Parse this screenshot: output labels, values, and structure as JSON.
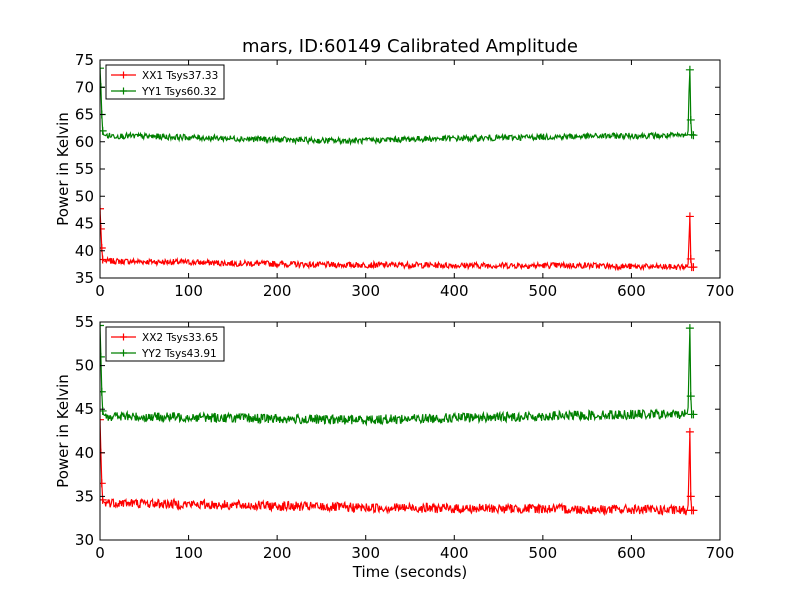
{
  "title": "mars, ID:60149 Calibrated Amplitude",
  "chart_data": [
    {
      "type": "line",
      "xlabel": "",
      "ylabel": "Power in Kelvin",
      "xlim": [
        0,
        700
      ],
      "ylim": [
        35,
        75
      ],
      "xticks": [
        "0",
        "100",
        "200",
        "300",
        "400",
        "500",
        "600",
        "700"
      ],
      "yticks": [
        "35",
        "40",
        "45",
        "50",
        "55",
        "60",
        "65",
        "70",
        "75"
      ],
      "legend_position": "top-left",
      "series": [
        {
          "name": "XX1 Tsys37.33",
          "color": "#ff0000",
          "x": [
            0,
            1,
            2,
            3,
            4,
            5,
            10,
            50,
            100,
            150,
            200,
            250,
            300,
            350,
            400,
            450,
            500,
            550,
            600,
            650,
            663,
            664,
            665,
            666,
            667,
            668,
            670
          ],
          "y": [
            47.7,
            44.0,
            40.5,
            38.4,
            38.2,
            38.1,
            38.1,
            38.0,
            37.9,
            37.7,
            37.6,
            37.4,
            37.4,
            37.4,
            37.3,
            37.3,
            37.3,
            37.3,
            37.1,
            37.0,
            37.1,
            37.6,
            42.0,
            46.3,
            38.5,
            37.0,
            37.0
          ]
        },
        {
          "name": "YY1 Tsys60.32",
          "color": "#008000",
          "x": [
            0,
            1,
            2,
            3,
            4,
            5,
            10,
            50,
            100,
            150,
            200,
            250,
            300,
            350,
            400,
            450,
            500,
            550,
            600,
            650,
            663,
            664,
            665,
            666,
            667,
            668,
            670
          ],
          "y": [
            73.5,
            70.0,
            65.0,
            62.0,
            61.3,
            61.2,
            61.1,
            61.0,
            60.8,
            60.6,
            60.4,
            60.2,
            60.2,
            60.5,
            60.6,
            60.7,
            60.9,
            61.0,
            61.1,
            61.1,
            61.2,
            62.0,
            69.0,
            73.2,
            64.0,
            61.3,
            61.2
          ]
        }
      ]
    },
    {
      "type": "line",
      "xlabel": "Time (seconds)",
      "ylabel": "Power in Kelvin",
      "xlim": [
        0,
        700
      ],
      "ylim": [
        30,
        55
      ],
      "xticks": [
        "0",
        "100",
        "200",
        "300",
        "400",
        "500",
        "600",
        "700"
      ],
      "yticks": [
        "30",
        "35",
        "40",
        "45",
        "50",
        "55"
      ],
      "legend_position": "top-left",
      "series": [
        {
          "name": "XX2 Tsys33.65",
          "color": "#ff0000",
          "x": [
            0,
            1,
            2,
            3,
            4,
            5,
            10,
            50,
            100,
            150,
            200,
            250,
            300,
            350,
            400,
            450,
            500,
            550,
            600,
            650,
            663,
            664,
            665,
            666,
            667,
            668,
            670
          ],
          "y": [
            43.8,
            40.0,
            36.5,
            34.6,
            34.4,
            34.3,
            34.3,
            34.2,
            34.1,
            34.0,
            33.9,
            33.8,
            33.7,
            33.7,
            33.6,
            33.6,
            33.6,
            33.5,
            33.5,
            33.4,
            33.4,
            34.0,
            38.2,
            42.4,
            35.0,
            33.4,
            33.4
          ]
        },
        {
          "name": "YY2 Tsys43.91",
          "color": "#008000",
          "x": [
            0,
            1,
            2,
            3,
            4,
            5,
            10,
            50,
            100,
            150,
            200,
            250,
            300,
            350,
            400,
            450,
            500,
            550,
            600,
            650,
            663,
            664,
            665,
            666,
            667,
            668,
            670
          ],
          "y": [
            54.6,
            51.0,
            47.0,
            44.8,
            44.4,
            44.3,
            44.2,
            44.1,
            44.1,
            44.0,
            43.9,
            43.8,
            43.8,
            43.9,
            44.0,
            44.1,
            44.2,
            44.3,
            44.4,
            44.4,
            44.5,
            45.2,
            50.0,
            54.3,
            46.5,
            44.4,
            44.4
          ]
        }
      ]
    }
  ]
}
